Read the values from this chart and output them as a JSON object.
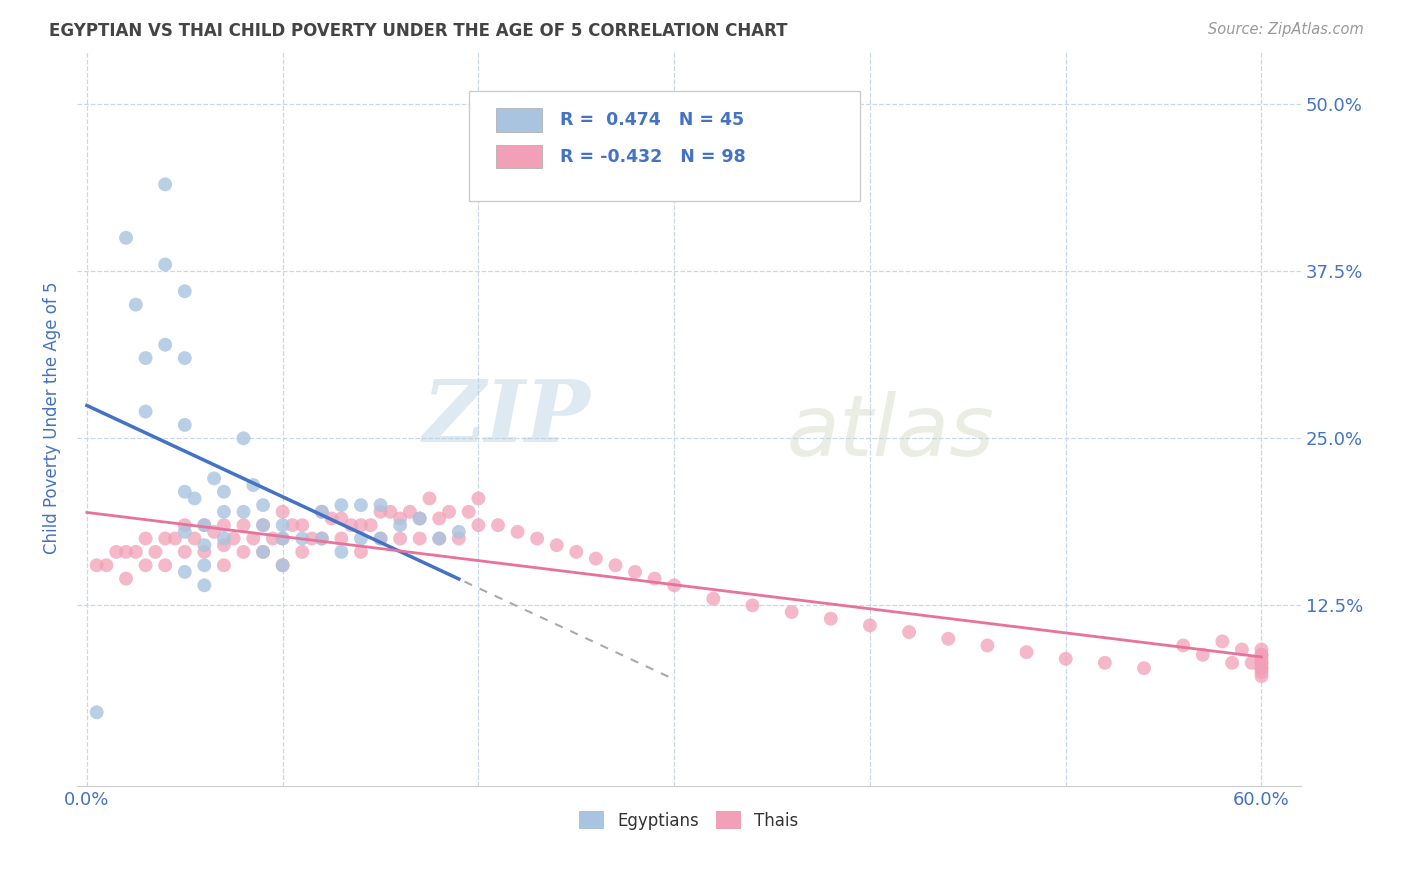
{
  "title": "EGYPTIAN VS THAI CHILD POVERTY UNDER THE AGE OF 5 CORRELATION CHART",
  "source": "Source: ZipAtlas.com",
  "ylabel": "Child Poverty Under the Age of 5",
  "xlim": [
    -0.005,
    0.62
  ],
  "ylim": [
    -0.01,
    0.54
  ],
  "xtick_positions": [
    0.0,
    0.6
  ],
  "xticklabels": [
    "0.0%",
    "60.0%"
  ],
  "ytick_positions": [
    0.125,
    0.25,
    0.375,
    0.5
  ],
  "ytick_labels": [
    "12.5%",
    "25.0%",
    "37.5%",
    "50.0%"
  ],
  "watermark_zip": "ZIP",
  "watermark_atlas": "atlas",
  "egyptian_color": "#a8c4df",
  "thai_color": "#f2a0b8",
  "egyptian_line_color": "#4472c4",
  "thai_line_color": "#e8729a",
  "r_egyptian": 0.474,
  "r_thai": -0.432,
  "n_egyptian": 45,
  "n_thai": 98,
  "title_color": "#444444",
  "axis_label_color": "#4472c4",
  "tick_label_color": "#4472c4",
  "grid_color": "#c8d8e8",
  "legend_color": "#4472c4",
  "egyptian_scatter_x": [
    0.005,
    0.02,
    0.025,
    0.03,
    0.03,
    0.04,
    0.04,
    0.04,
    0.05,
    0.05,
    0.05,
    0.05,
    0.05,
    0.05,
    0.055,
    0.06,
    0.06,
    0.06,
    0.06,
    0.065,
    0.07,
    0.07,
    0.07,
    0.08,
    0.08,
    0.085,
    0.09,
    0.09,
    0.09,
    0.1,
    0.1,
    0.1,
    0.11,
    0.12,
    0.12,
    0.13,
    0.13,
    0.14,
    0.14,
    0.15,
    0.15,
    0.16,
    0.17,
    0.18,
    0.19
  ],
  "egyptian_scatter_y": [
    0.045,
    0.4,
    0.35,
    0.31,
    0.27,
    0.44,
    0.38,
    0.32,
    0.36,
    0.31,
    0.26,
    0.21,
    0.18,
    0.15,
    0.205,
    0.185,
    0.17,
    0.155,
    0.14,
    0.22,
    0.21,
    0.195,
    0.175,
    0.25,
    0.195,
    0.215,
    0.2,
    0.185,
    0.165,
    0.185,
    0.175,
    0.155,
    0.175,
    0.195,
    0.175,
    0.2,
    0.165,
    0.2,
    0.175,
    0.2,
    0.175,
    0.185,
    0.19,
    0.175,
    0.18
  ],
  "thai_scatter_x": [
    0.005,
    0.01,
    0.015,
    0.02,
    0.02,
    0.025,
    0.03,
    0.03,
    0.035,
    0.04,
    0.04,
    0.045,
    0.05,
    0.05,
    0.055,
    0.06,
    0.06,
    0.065,
    0.07,
    0.07,
    0.07,
    0.075,
    0.08,
    0.08,
    0.085,
    0.09,
    0.09,
    0.095,
    0.1,
    0.1,
    0.1,
    0.105,
    0.11,
    0.11,
    0.115,
    0.12,
    0.12,
    0.125,
    0.13,
    0.13,
    0.135,
    0.14,
    0.14,
    0.145,
    0.15,
    0.15,
    0.155,
    0.16,
    0.16,
    0.165,
    0.17,
    0.17,
    0.175,
    0.18,
    0.18,
    0.185,
    0.19,
    0.195,
    0.2,
    0.2,
    0.21,
    0.22,
    0.23,
    0.24,
    0.25,
    0.26,
    0.27,
    0.28,
    0.29,
    0.3,
    0.32,
    0.34,
    0.36,
    0.38,
    0.4,
    0.42,
    0.44,
    0.46,
    0.48,
    0.5,
    0.52,
    0.54,
    0.56,
    0.57,
    0.58,
    0.585,
    0.59,
    0.595,
    0.6,
    0.6,
    0.6,
    0.6,
    0.6,
    0.6,
    0.6,
    0.6,
    0.6,
    0.6
  ],
  "thai_scatter_y": [
    0.155,
    0.155,
    0.165,
    0.165,
    0.145,
    0.165,
    0.175,
    0.155,
    0.165,
    0.175,
    0.155,
    0.175,
    0.185,
    0.165,
    0.175,
    0.185,
    0.165,
    0.18,
    0.185,
    0.17,
    0.155,
    0.175,
    0.185,
    0.165,
    0.175,
    0.185,
    0.165,
    0.175,
    0.195,
    0.175,
    0.155,
    0.185,
    0.185,
    0.165,
    0.175,
    0.195,
    0.175,
    0.19,
    0.19,
    0.175,
    0.185,
    0.185,
    0.165,
    0.185,
    0.195,
    0.175,
    0.195,
    0.19,
    0.175,
    0.195,
    0.19,
    0.175,
    0.205,
    0.19,
    0.175,
    0.195,
    0.175,
    0.195,
    0.205,
    0.185,
    0.185,
    0.18,
    0.175,
    0.17,
    0.165,
    0.16,
    0.155,
    0.15,
    0.145,
    0.14,
    0.13,
    0.125,
    0.12,
    0.115,
    0.11,
    0.105,
    0.1,
    0.095,
    0.09,
    0.085,
    0.082,
    0.078,
    0.095,
    0.088,
    0.098,
    0.082,
    0.092,
    0.082,
    0.088,
    0.078,
    0.092,
    0.082,
    0.088,
    0.078,
    0.085,
    0.075,
    0.082,
    0.072
  ]
}
